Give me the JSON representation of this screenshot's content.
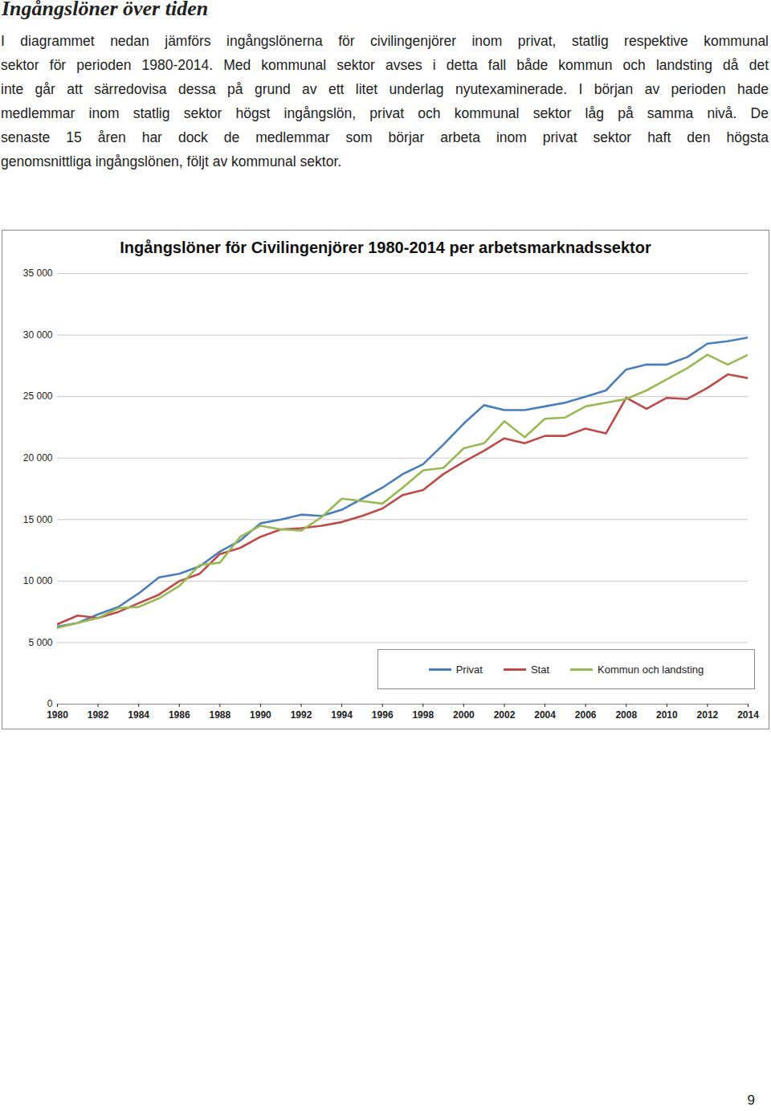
{
  "header": {
    "title": "Ingångslöner över tiden"
  },
  "paragraph": [
    "I diagrammet nedan jämförs ingångslönerna för civilingenjörer inom privat, statlig respektive kommunal",
    "sektor för perioden 1980-2014. Med kommunal sektor avses i detta fall både kommun och landsting då det",
    "inte går att särredovisa dessa på grund av ett litet underlag nyutexaminerade. I början av perioden hade",
    "medlemmar inom statlig sektor högst ingångslön, privat och kommunal sektor låg på samma nivå. De",
    "senaste 15 åren har dock de medlemmar som börjar arbeta inom privat sektor haft den högsta",
    "genomsnittliga ingångslönen, följt av kommunal sektor."
  ],
  "chart_data": {
    "type": "line",
    "title": "Ingångslöner för Civilingenjörer 1980-2014 per arbetsmarknadssektor",
    "x": [
      1980,
      1981,
      1982,
      1983,
      1984,
      1985,
      1986,
      1987,
      1988,
      1989,
      1990,
      1991,
      1992,
      1993,
      1994,
      1995,
      1996,
      1997,
      1998,
      1999,
      2000,
      2001,
      2002,
      2003,
      2004,
      2005,
      2006,
      2007,
      2008,
      2009,
      2010,
      2011,
      2012,
      2013,
      2014
    ],
    "series": [
      {
        "name": "Privat",
        "color": "#4a7ebb",
        "values": [
          6300,
          6600,
          7300,
          7900,
          9000,
          10300,
          10600,
          11200,
          12400,
          13300,
          14700,
          15000,
          15400,
          15300,
          15800,
          16700,
          17600,
          18700,
          19500,
          21100,
          22800,
          24300,
          23900,
          23900,
          24200,
          24500,
          25000,
          25500,
          27200,
          27600,
          27600,
          28200,
          29300,
          29500,
          29800
        ]
      },
      {
        "name": "Stat",
        "color": "#be4b48",
        "values": [
          6500,
          7200,
          7000,
          7500,
          8200,
          8900,
          10000,
          10600,
          12200,
          12700,
          13600,
          14200,
          14300,
          14500,
          14800,
          15300,
          15900,
          17000,
          17400,
          18700,
          19700,
          20600,
          21600,
          21200,
          21800,
          21800,
          22400,
          22000,
          24900,
          24000,
          24900,
          24800,
          25700,
          26800,
          26500
        ]
      },
      {
        "name": "Kommun och landsting",
        "color": "#98b954",
        "values": [
          6200,
          6600,
          7000,
          7800,
          7900,
          8600,
          9600,
          11300,
          11500,
          13600,
          14500,
          14200,
          14100,
          15200,
          16700,
          16500,
          16300,
          17600,
          19000,
          19200,
          20800,
          21200,
          23000,
          21700,
          23200,
          23300,
          24200,
          24500,
          24800,
          25500,
          26400,
          27300,
          28400,
          27600,
          28400
        ]
      }
    ],
    "xlim": [
      1980,
      2014
    ],
    "xticks": [
      1980,
      1982,
      1984,
      1986,
      1988,
      1990,
      1992,
      1994,
      1996,
      1998,
      2000,
      2002,
      2004,
      2006,
      2008,
      2010,
      2012,
      2014
    ],
    "ylim": [
      0,
      35000
    ],
    "yticks": [
      0,
      {
        "value": 5000,
        "label": "5 000"
      },
      {
        "value": 10000,
        "label": "10 000"
      },
      {
        "value": 15000,
        "label": "15 000"
      },
      {
        "value": 20000,
        "label": "20 000"
      },
      {
        "value": 25000,
        "label": "25 000"
      },
      {
        "value": 30000,
        "label": "30 000"
      },
      {
        "value": 35000,
        "label": "35 000"
      }
    ],
    "grid": true,
    "legend": "bottom-right"
  },
  "page_number": 9
}
